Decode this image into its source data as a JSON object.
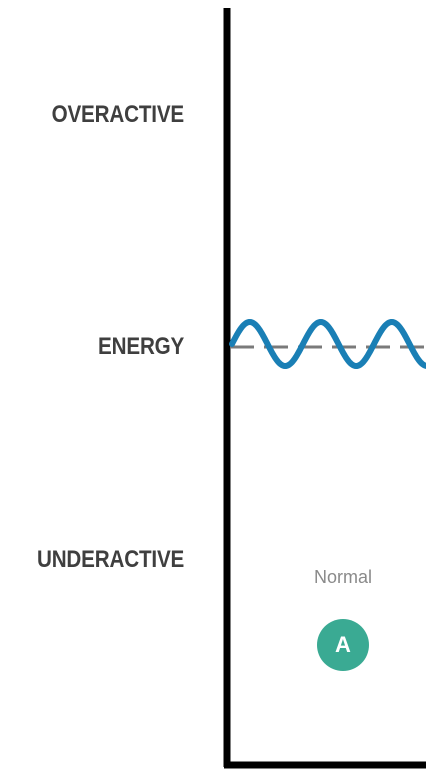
{
  "y_axis": {
    "levels": [
      "OVERACTIVE",
      "ENERGY",
      "UNDERACTIVE"
    ]
  },
  "state": {
    "label": "Normal",
    "badge": "A"
  },
  "colors": {
    "wave": "#1a7fb5",
    "baseline": "#7a7a7a",
    "axis": "#000000",
    "badge": "#3aaa93",
    "label_text": "#3f3f3f"
  }
}
